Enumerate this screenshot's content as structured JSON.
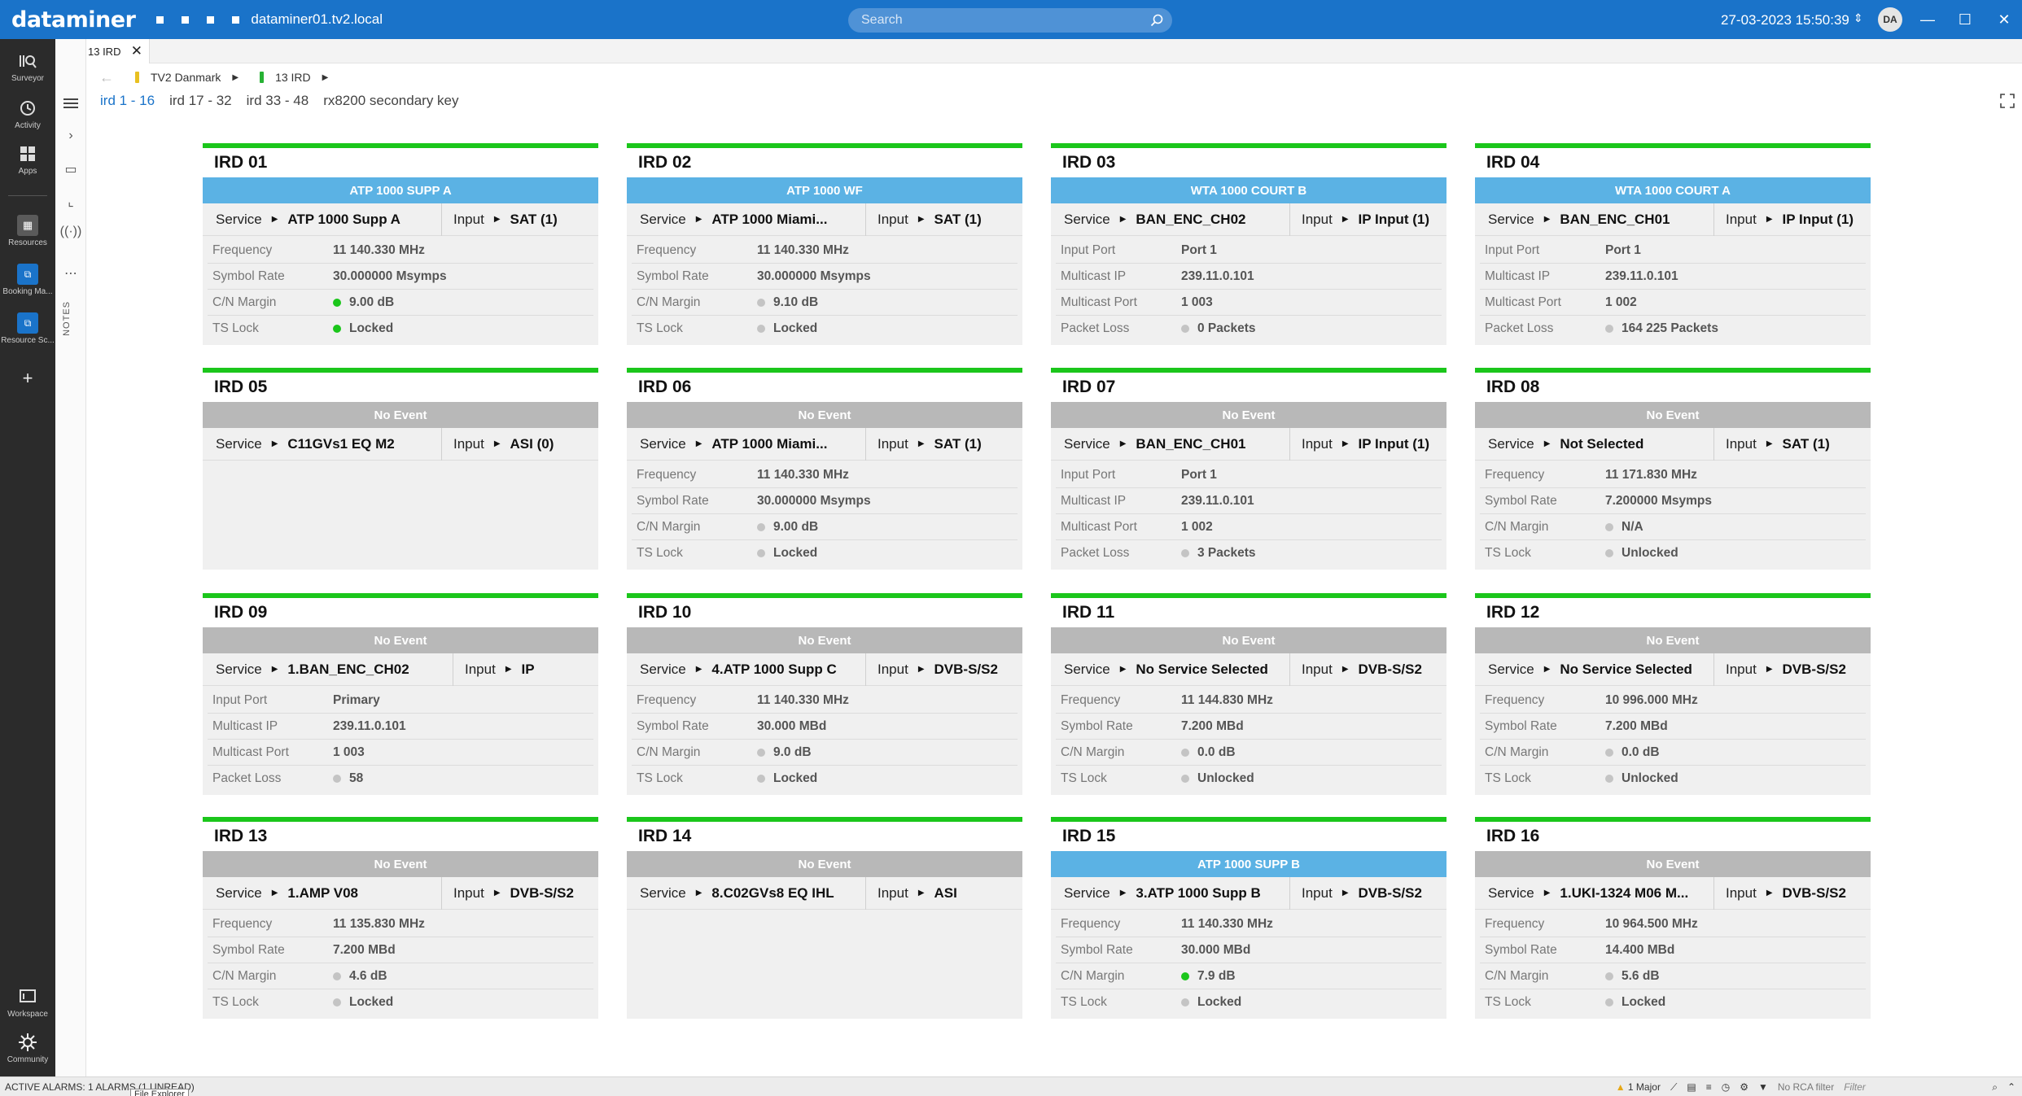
{
  "app": {
    "logo": "dataminer",
    "host": "dataminer01.tv2.local",
    "datetime": "27-03-2023 15:50:39",
    "user_initials": "DA"
  },
  "search": {
    "placeholder": "Search"
  },
  "sidebar": {
    "items": [
      {
        "label": "Surveyor",
        "icon": "surveyor-icon"
      },
      {
        "label": "Activity",
        "icon": "activity-icon"
      },
      {
        "label": "Apps",
        "icon": "apps-icon"
      },
      {
        "label": "Resources",
        "icon": "resources-icon"
      },
      {
        "label": "Booking Ma...",
        "icon": "booking-icon"
      },
      {
        "label": "Resource Sc...",
        "icon": "resource-scheduling-icon"
      },
      {
        "label": "Workspace",
        "icon": "workspace-icon"
      },
      {
        "label": "Community",
        "icon": "community-icon"
      }
    ]
  },
  "strip": {
    "notes_label": "NOTES"
  },
  "tab": {
    "label": "13 IRD"
  },
  "breadcrumb": [
    {
      "label": "TV2 Danmark",
      "color": "#e8c020"
    },
    {
      "label": "13 IRD",
      "color": "#27b234"
    }
  ],
  "page_tabs": [
    "ird 1 - 16",
    "ird 17 - 32",
    "ird 33 - 48",
    "rx8200 secondary key"
  ],
  "cards": [
    {
      "title": "IRD 01",
      "event": "ATP 1000 SUPP A",
      "event_type": "blue",
      "service_label": "Service",
      "service": "ATP 1000 Supp A",
      "input_label": "Input",
      "input": "SAT (1)",
      "params": [
        {
          "label": "Frequency",
          "value": "11 140.330 MHz",
          "dot": ""
        },
        {
          "label": "Symbol Rate",
          "value": "30.000000 Msymps",
          "dot": ""
        },
        {
          "label": "C/N Margin",
          "value": "9.00 dB",
          "dot": "green"
        },
        {
          "label": "TS Lock",
          "value": "Locked",
          "dot": "green"
        }
      ]
    },
    {
      "title": "IRD 02",
      "event": "ATP 1000 WF",
      "event_type": "blue",
      "service_label": "Service",
      "service": "ATP 1000 Miami...",
      "input_label": "Input",
      "input": "SAT (1)",
      "params": [
        {
          "label": "Frequency",
          "value": "11 140.330 MHz",
          "dot": ""
        },
        {
          "label": "Symbol Rate",
          "value": "30.000000 Msymps",
          "dot": ""
        },
        {
          "label": "C/N Margin",
          "value": "9.10 dB",
          "dot": "grey"
        },
        {
          "label": "TS Lock",
          "value": "Locked",
          "dot": "grey"
        }
      ]
    },
    {
      "title": "IRD 03",
      "event": "WTA 1000 COURT B",
      "event_type": "blue",
      "service_label": "Service",
      "service": "BAN_ENC_CH02",
      "input_label": "Input",
      "input": "IP Input (1)",
      "params": [
        {
          "label": "Input Port",
          "value": "Port 1",
          "dot": ""
        },
        {
          "label": "Multicast IP",
          "value": "239.11.0.101",
          "dot": ""
        },
        {
          "label": "Multicast Port",
          "value": "1 003",
          "dot": ""
        },
        {
          "label": "Packet Loss",
          "value": "0 Packets",
          "dot": "grey"
        }
      ]
    },
    {
      "title": "IRD 04",
      "event": "WTA 1000 COURT A",
      "event_type": "blue",
      "service_label": "Service",
      "service": "BAN_ENC_CH01",
      "input_label": "Input",
      "input": "IP Input (1)",
      "params": [
        {
          "label": "Input Port",
          "value": "Port 1",
          "dot": ""
        },
        {
          "label": "Multicast IP",
          "value": "239.11.0.101",
          "dot": ""
        },
        {
          "label": "Multicast Port",
          "value": "1 002",
          "dot": ""
        },
        {
          "label": "Packet Loss",
          "value": "164 225 Packets",
          "dot": "grey"
        }
      ]
    },
    {
      "title": "IRD 05",
      "event": "No Event",
      "event_type": "grey",
      "service_label": "Service",
      "service": "C11GVs1 EQ M2",
      "input_label": "Input",
      "input": "ASI (0)",
      "params": []
    },
    {
      "title": "IRD 06",
      "event": "No Event",
      "event_type": "grey",
      "service_label": "Service",
      "service": "ATP 1000 Miami...",
      "input_label": "Input",
      "input": "SAT (1)",
      "params": [
        {
          "label": "Frequency",
          "value": "11 140.330 MHz",
          "dot": ""
        },
        {
          "label": "Symbol Rate",
          "value": "30.000000 Msymps",
          "dot": ""
        },
        {
          "label": "C/N Margin",
          "value": "9.00 dB",
          "dot": "grey"
        },
        {
          "label": "TS Lock",
          "value": "Locked",
          "dot": "grey"
        }
      ]
    },
    {
      "title": "IRD 07",
      "event": "No Event",
      "event_type": "grey",
      "service_label": "Service",
      "service": "BAN_ENC_CH01",
      "input_label": "Input",
      "input": "IP Input (1)",
      "params": [
        {
          "label": "Input Port",
          "value": "Port 1",
          "dot": ""
        },
        {
          "label": "Multicast IP",
          "value": "239.11.0.101",
          "dot": ""
        },
        {
          "label": "Multicast Port",
          "value": "1 002",
          "dot": ""
        },
        {
          "label": "Packet Loss",
          "value": "3 Packets",
          "dot": "grey"
        }
      ]
    },
    {
      "title": "IRD 08",
      "event": "No Event",
      "event_type": "grey",
      "service_label": "Service",
      "service": "Not Selected",
      "input_label": "Input",
      "input": "SAT (1)",
      "params": [
        {
          "label": "Frequency",
          "value": "11 171.830 MHz",
          "dot": ""
        },
        {
          "label": "Symbol Rate",
          "value": "7.200000 Msymps",
          "dot": ""
        },
        {
          "label": "C/N Margin",
          "value": "N/A",
          "dot": "grey"
        },
        {
          "label": "TS Lock",
          "value": "Unlocked",
          "dot": "grey"
        }
      ]
    },
    {
      "title": "IRD 09",
      "event": "No Event",
      "event_type": "grey",
      "service_label": "Service",
      "service": "1.BAN_ENC_CH02",
      "input_label": "Input",
      "input": "IP",
      "params": [
        {
          "label": "Input Port",
          "value": "Primary",
          "dot": ""
        },
        {
          "label": "Multicast IP",
          "value": "239.11.0.101",
          "dot": ""
        },
        {
          "label": "Multicast Port",
          "value": "1 003",
          "dot": ""
        },
        {
          "label": "Packet Loss",
          "value": "58",
          "dot": "grey"
        }
      ]
    },
    {
      "title": "IRD 10",
      "event": "No Event",
      "event_type": "grey",
      "service_label": "Service",
      "service": "4.ATP 1000 Supp C",
      "input_label": "Input",
      "input": "DVB-S/S2",
      "params": [
        {
          "label": "Frequency",
          "value": "11 140.330 MHz",
          "dot": ""
        },
        {
          "label": "Symbol Rate",
          "value": "30.000 MBd",
          "dot": ""
        },
        {
          "label": "C/N Margin",
          "value": "9.0 dB",
          "dot": "grey"
        },
        {
          "label": "TS Lock",
          "value": "Locked",
          "dot": "grey"
        }
      ]
    },
    {
      "title": "IRD 11",
      "event": "No Event",
      "event_type": "grey",
      "service_label": "Service",
      "service": "No Service Selected",
      "input_label": "Input",
      "input": "DVB-S/S2",
      "params": [
        {
          "label": "Frequency",
          "value": "11 144.830 MHz",
          "dot": ""
        },
        {
          "label": "Symbol Rate",
          "value": "7.200 MBd",
          "dot": ""
        },
        {
          "label": "C/N Margin",
          "value": "0.0 dB",
          "dot": "grey"
        },
        {
          "label": "TS Lock",
          "value": "Unlocked",
          "dot": "grey"
        }
      ]
    },
    {
      "title": "IRD 12",
      "event": "No Event",
      "event_type": "grey",
      "service_label": "Service",
      "service": "No Service Selected",
      "input_label": "Input",
      "input": "DVB-S/S2",
      "params": [
        {
          "label": "Frequency",
          "value": "10 996.000 MHz",
          "dot": ""
        },
        {
          "label": "Symbol Rate",
          "value": "7.200 MBd",
          "dot": ""
        },
        {
          "label": "C/N Margin",
          "value": "0.0 dB",
          "dot": "grey"
        },
        {
          "label": "TS Lock",
          "value": "Unlocked",
          "dot": "grey"
        }
      ]
    },
    {
      "title": "IRD 13",
      "event": "No Event",
      "event_type": "grey",
      "service_label": "Service",
      "service": "1.AMP V08",
      "input_label": "Input",
      "input": "DVB-S/S2",
      "params": [
        {
          "label": "Frequency",
          "value": "11 135.830 MHz",
          "dot": ""
        },
        {
          "label": "Symbol Rate",
          "value": "7.200 MBd",
          "dot": ""
        },
        {
          "label": "C/N Margin",
          "value": "4.6 dB",
          "dot": "grey"
        },
        {
          "label": "TS Lock",
          "value": "Locked",
          "dot": "grey"
        }
      ]
    },
    {
      "title": "IRD 14",
      "event": "No Event",
      "event_type": "grey",
      "service_label": "Service",
      "service": "8.C02GVs8 EQ IHL",
      "input_label": "Input",
      "input": "ASI",
      "params": []
    },
    {
      "title": "IRD 15",
      "event": "ATP 1000 SUPP B",
      "event_type": "blue",
      "service_label": "Service",
      "service": "3.ATP 1000 Supp B",
      "input_label": "Input",
      "input": "DVB-S/S2",
      "params": [
        {
          "label": "Frequency",
          "value": "11 140.330 MHz",
          "dot": ""
        },
        {
          "label": "Symbol Rate",
          "value": "30.000 MBd",
          "dot": ""
        },
        {
          "label": "C/N Margin",
          "value": "7.9 dB",
          "dot": "green"
        },
        {
          "label": "TS Lock",
          "value": "Locked",
          "dot": "grey"
        }
      ]
    },
    {
      "title": "IRD 16",
      "event": "No Event",
      "event_type": "grey",
      "service_label": "Service",
      "service": "1.UKI-1324 M06 M...",
      "input_label": "Input",
      "input": "DVB-S/S2",
      "params": [
        {
          "label": "Frequency",
          "value": "10 964.500 MHz",
          "dot": ""
        },
        {
          "label": "Symbol Rate",
          "value": "14.400 MBd",
          "dot": ""
        },
        {
          "label": "C/N Margin",
          "value": "5.6 dB",
          "dot": "grey"
        },
        {
          "label": "TS Lock",
          "value": "Locked",
          "dot": "grey"
        }
      ]
    }
  ],
  "statusbar": {
    "alarms": "ACTIVE ALARMS: 1 ALARMS (1 UNREAD)",
    "tooltip": "File Explorer",
    "major": "1 Major",
    "rca": "No RCA filter",
    "filter_placeholder": "Filter"
  },
  "colors": {
    "accent": "#1a73c9",
    "ok": "#1bc61b",
    "event_blue": "#5bb2e4",
    "event_grey": "#b8b8b8"
  }
}
